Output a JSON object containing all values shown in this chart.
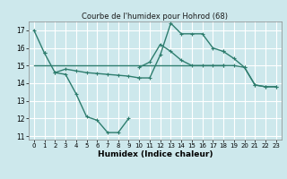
{
  "title": "Courbe de l'humidex pour Hohrod (68)",
  "xlabel": "Humidex (Indice chaleur)",
  "xlim": [
    -0.5,
    23.5
  ],
  "ylim": [
    10.8,
    17.5
  ],
  "yticks": [
    11,
    12,
    13,
    14,
    15,
    16,
    17
  ],
  "xticks": [
    0,
    1,
    2,
    3,
    4,
    5,
    6,
    7,
    8,
    9,
    10,
    11,
    12,
    13,
    14,
    15,
    16,
    17,
    18,
    19,
    20,
    21,
    22,
    23
  ],
  "bg_color": "#cde8ec",
  "grid_color": "#ffffff",
  "line_color": "#2e7d6e",
  "lw": 1.0,
  "ms": 3,
  "segments": [
    {
      "x": [
        0,
        1
      ],
      "y": [
        17.0,
        15.7
      ],
      "markers": true
    },
    {
      "x": [
        1,
        2,
        3,
        4,
        5,
        6,
        7,
        8,
        9
      ],
      "y": [
        15.7,
        14.6,
        14.5,
        13.4,
        12.1,
        11.9,
        11.2,
        11.2,
        12.0
      ],
      "markers": true
    },
    {
      "x": [
        2,
        3,
        4,
        5,
        6,
        7,
        8,
        9,
        10
      ],
      "y": [
        14.6,
        14.8,
        14.7,
        14.6,
        14.55,
        14.5,
        14.45,
        14.4,
        14.3
      ],
      "markers": true
    },
    {
      "x": [
        10,
        11,
        12,
        13,
        14,
        15,
        16,
        17,
        18
      ],
      "y": [
        14.3,
        14.3,
        15.6,
        17.4,
        16.8,
        16.8,
        16.8,
        16.0,
        15.8
      ],
      "markers": true
    },
    {
      "x": [
        10,
        11,
        12,
        13,
        14,
        15,
        16,
        17,
        18
      ],
      "y": [
        14.9,
        15.2,
        16.2,
        15.8,
        15.3,
        15.0,
        15.0,
        15.0,
        15.0
      ],
      "markers": true
    },
    {
      "x": [
        0,
        1,
        2,
        3,
        4,
        5,
        6,
        7,
        8,
        9,
        10,
        11,
        12,
        13,
        14,
        15,
        16,
        17,
        18
      ],
      "y": [
        15.0,
        15.0,
        15.0,
        15.0,
        15.0,
        15.0,
        15.0,
        15.0,
        15.0,
        15.0,
        15.0,
        15.0,
        15.0,
        15.0,
        15.0,
        15.0,
        15.0,
        15.0,
        15.0
      ],
      "markers": false
    },
    {
      "x": [
        18,
        19,
        20,
        21,
        22,
        23
      ],
      "y": [
        15.8,
        15.4,
        14.9,
        13.9,
        13.8,
        13.8
      ],
      "markers": true
    },
    {
      "x": [
        18,
        19,
        20,
        21,
        22,
        23
      ],
      "y": [
        15.0,
        15.0,
        14.9,
        13.9,
        13.8,
        13.8
      ],
      "markers": true
    }
  ]
}
